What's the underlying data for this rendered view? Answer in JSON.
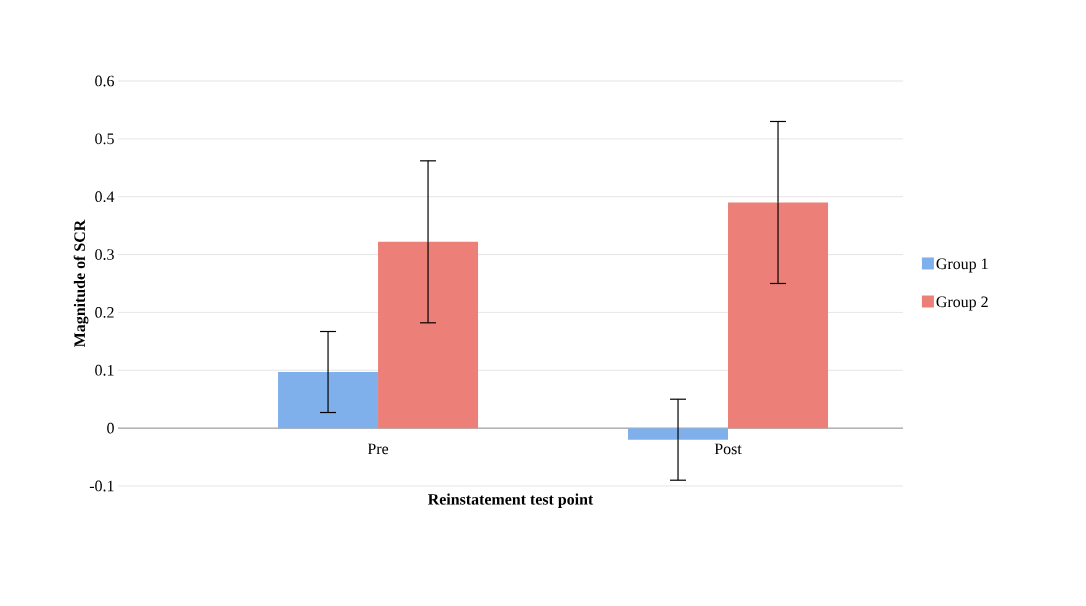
{
  "chart_data": {
    "type": "bar",
    "xlabel": "Reinstatement test point",
    "ylabel": "Magnitude of SCR",
    "categories": [
      "Pre",
      "Post"
    ],
    "series": [
      {
        "name": "Group 1",
        "color": "#7fb0ec",
        "values": [
          0.097,
          -0.02
        ],
        "errors": [
          0.07,
          0.07
        ]
      },
      {
        "name": "Group 2",
        "color": "#ec8078",
        "values": [
          0.322,
          0.39
        ],
        "errors": [
          0.14,
          0.14
        ]
      }
    ],
    "ylim": [
      -0.1,
      0.6
    ],
    "yticks": [
      -0.1,
      0,
      0.1,
      0.2,
      0.3,
      0.4,
      0.5,
      0.6
    ],
    "grid": "y",
    "legend": "right"
  }
}
